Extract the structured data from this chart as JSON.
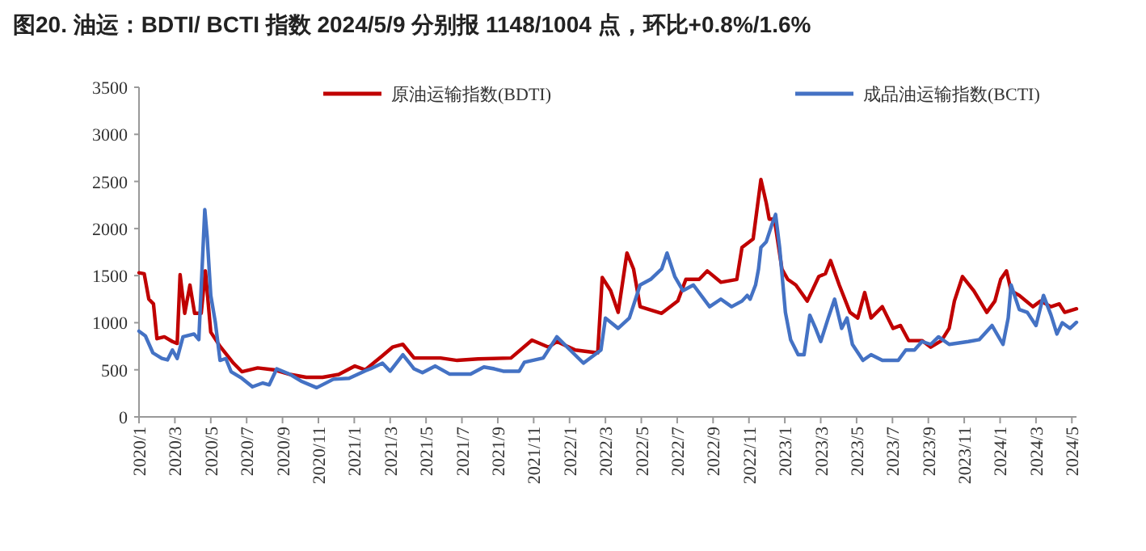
{
  "chart_data": {
    "type": "line",
    "title": "图20. 油运：BDTI/ BCTI 指数 2024/5/9 分别报 1148/1004 点，环比+0.8%/1.6%",
    "legend": "top",
    "ylim": [
      0,
      3500
    ],
    "yticks": [
      0,
      500,
      1000,
      1500,
      2000,
      2500,
      3000,
      3500
    ],
    "xlim": [
      "2020-01-01",
      "2024-05-09"
    ],
    "xticks": [
      {
        "value": "2020-01",
        "label": "2020/1"
      },
      {
        "value": "2020-03",
        "label": "2020/3"
      },
      {
        "value": "2020-05",
        "label": "2020/5"
      },
      {
        "value": "2020-07",
        "label": "2020/7"
      },
      {
        "value": "2020-09",
        "label": "2020/9"
      },
      {
        "value": "2020-11",
        "label": "2020/11"
      },
      {
        "value": "2021-01",
        "label": "2021/1"
      },
      {
        "value": "2021-03",
        "label": "2021/3"
      },
      {
        "value": "2021-05",
        "label": "2021/5"
      },
      {
        "value": "2021-07",
        "label": "2021/7"
      },
      {
        "value": "2021-09",
        "label": "2021/9"
      },
      {
        "value": "2021-11",
        "label": "2021/11"
      },
      {
        "value": "2022-01",
        "label": "2022/1"
      },
      {
        "value": "2022-03",
        "label": "2022/3"
      },
      {
        "value": "2022-05",
        "label": "2022/5"
      },
      {
        "value": "2022-07",
        "label": "2022/7"
      },
      {
        "value": "2022-09",
        "label": "2022/9"
      },
      {
        "value": "2022-11",
        "label": "2022/11"
      },
      {
        "value": "2023-01",
        "label": "2023/1"
      },
      {
        "value": "2023-03",
        "label": "2023/3"
      },
      {
        "value": "2023-05",
        "label": "2023/5"
      },
      {
        "value": "2023-07",
        "label": "2023/7"
      },
      {
        "value": "2023-09",
        "label": "2023/9"
      },
      {
        "value": "2023-11",
        "label": "2023/11"
      },
      {
        "value": "2024-01",
        "label": "2024/1"
      },
      {
        "value": "2024-03",
        "label": "2024/3"
      },
      {
        "value": "2024-05",
        "label": "2024/5"
      }
    ],
    "series": [
      {
        "name": "原油运输指数(BDTI)",
        "color": "#c00000",
        "x": [
          "2020-01-01",
          "2020-01-10",
          "2020-01-18",
          "2020-01-26",
          "2020-02-01",
          "2020-02-13",
          "2020-02-26",
          "2020-03-05",
          "2020-03-10",
          "2020-03-18",
          "2020-03-27",
          "2020-04-04",
          "2020-04-15",
          "2020-04-22",
          "2020-05-01",
          "2020-05-17",
          "2020-06-09",
          "2020-06-23",
          "2020-07-20",
          "2020-08-17",
          "2020-09-14",
          "2020-10-11",
          "2020-11-08",
          "2020-12-05",
          "2021-01-02",
          "2021-01-20",
          "2021-02-17",
          "2021-03-05",
          "2021-03-23",
          "2021-04-11",
          "2021-05-26",
          "2021-06-23",
          "2021-07-29",
          "2021-09-23",
          "2021-10-29",
          "2021-11-26",
          "2021-12-10",
          "2022-01-11",
          "2022-02-17",
          "2022-02-24",
          "2022-03-10",
          "2022-03-23",
          "2022-04-07",
          "2022-04-18",
          "2022-04-29",
          "2022-06-05",
          "2022-07-02",
          "2022-07-16",
          "2022-08-08",
          "2022-08-22",
          "2022-09-14",
          "2022-10-11",
          "2022-10-20",
          "2022-11-08",
          "2022-11-21",
          "2022-11-30",
          "2022-12-05",
          "2022-12-14",
          "2022-12-27",
          "2023-01-06",
          "2023-01-20",
          "2023-02-08",
          "2023-02-26",
          "2023-03-09",
          "2023-03-18",
          "2023-04-02",
          "2023-04-20",
          "2023-05-03",
          "2023-05-15",
          "2023-05-26",
          "2023-06-14",
          "2023-07-02",
          "2023-07-15",
          "2023-07-29",
          "2023-08-21",
          "2023-09-05",
          "2023-09-23",
          "2023-10-06",
          "2023-10-15",
          "2023-10-29",
          "2023-11-17",
          "2023-12-09",
          "2023-12-23",
          "2024-01-02",
          "2024-01-12",
          "2024-01-20",
          "2024-02-03",
          "2024-02-25",
          "2024-03-09",
          "2024-03-27",
          "2024-04-10",
          "2024-04-19",
          "2024-05-09"
        ],
        "values": [
          1530,
          1520,
          1250,
          1200,
          830,
          850,
          800,
          780,
          1510,
          1100,
          1400,
          1100,
          1100,
          1550,
          900,
          750,
          570,
          480,
          520,
          500,
          450,
          420,
          420,
          450,
          540,
          500,
          650,
          740,
          770,
          625,
          625,
          600,
          615,
          625,
          815,
          740,
          800,
          710,
          680,
          1480,
          1340,
          1110,
          1740,
          1570,
          1170,
          1100,
          1230,
          1460,
          1460,
          1550,
          1430,
          1460,
          1800,
          1890,
          2520,
          2270,
          2100,
          2100,
          1570,
          1460,
          1400,
          1230,
          1490,
          1520,
          1660,
          1400,
          1110,
          1050,
          1320,
          1050,
          1170,
          940,
          970,
          810,
          810,
          740,
          810,
          940,
          1230,
          1490,
          1340,
          1110,
          1230,
          1460,
          1550,
          1340,
          1290,
          1170,
          1230,
          1170,
          1200,
          1110,
          1148
        ]
      },
      {
        "name": "成品油运输指数(BCTI)",
        "color": "#4472c4",
        "x": [
          "2020-01-01",
          "2020-01-12",
          "2020-01-25",
          "2020-02-09",
          "2020-02-18",
          "2020-02-26",
          "2020-03-05",
          "2020-03-15",
          "2020-04-03",
          "2020-04-11",
          "2020-04-21",
          "2020-04-25",
          "2020-05-01",
          "2020-05-09",
          "2020-05-17",
          "2020-05-27",
          "2020-06-05",
          "2020-06-23",
          "2020-07-11",
          "2020-07-29",
          "2020-08-09",
          "2020-08-22",
          "2020-09-14",
          "2020-10-02",
          "2020-10-29",
          "2020-11-26",
          "2020-12-23",
          "2021-01-20",
          "2021-01-29",
          "2021-02-17",
          "2021-03-01",
          "2021-03-23",
          "2021-04-11",
          "2021-04-25",
          "2021-05-17",
          "2021-06-10",
          "2021-07-16",
          "2021-08-08",
          "2021-08-26",
          "2021-09-10",
          "2021-10-07",
          "2021-10-16",
          "2021-11-17",
          "2021-12-10",
          "2022-01-02",
          "2022-01-25",
          "2022-02-22",
          "2022-03-01",
          "2022-03-23",
          "2022-04-11",
          "2022-04-29",
          "2022-05-17",
          "2022-06-05",
          "2022-06-14",
          "2022-06-27",
          "2022-07-11",
          "2022-07-29",
          "2022-08-26",
          "2022-09-14",
          "2022-10-02",
          "2022-10-20",
          "2022-10-29",
          "2022-11-03",
          "2022-11-12",
          "2022-11-17",
          "2022-11-21",
          "2022-11-30",
          "2022-12-09",
          "2022-12-16",
          "2022-12-23",
          "2023-01-02",
          "2023-01-11",
          "2023-01-24",
          "2023-02-03",
          "2023-02-12",
          "2023-02-21",
          "2023-03-01",
          "2023-03-14",
          "2023-03-25",
          "2023-04-06",
          "2023-04-15",
          "2023-04-24",
          "2023-05-12",
          "2023-05-26",
          "2023-06-14",
          "2023-07-11",
          "2023-07-24",
          "2023-08-08",
          "2023-08-21",
          "2023-09-05",
          "2023-09-18",
          "2023-10-06",
          "2023-11-08",
          "2023-11-26",
          "2023-12-18",
          "2024-01-06",
          "2024-01-15",
          "2024-01-20",
          "2024-02-03",
          "2024-02-16",
          "2024-03-01",
          "2024-03-14",
          "2024-03-27",
          "2024-04-06",
          "2024-04-15",
          "2024-04-28",
          "2024-05-09"
        ],
        "values": [
          910,
          860,
          680,
          620,
          605,
          710,
          620,
          850,
          880,
          820,
          2200,
          1910,
          1290,
          1000,
          600,
          620,
          480,
          410,
          320,
          360,
          340,
          510,
          450,
          380,
          310,
          400,
          410,
          490,
          510,
          570,
          485,
          660,
          510,
          470,
          540,
          455,
          455,
          530,
          510,
          485,
          485,
          580,
          625,
          850,
          710,
          570,
          710,
          1050,
          940,
          1050,
          1400,
          1460,
          1570,
          1740,
          1490,
          1340,
          1400,
          1170,
          1250,
          1170,
          1230,
          1290,
          1250,
          1400,
          1570,
          1800,
          1860,
          2030,
          2150,
          1800,
          1110,
          820,
          660,
          660,
          1080,
          940,
          800,
          1050,
          1250,
          940,
          1050,
          770,
          600,
          660,
          600,
          600,
          710,
          710,
          800,
          770,
          850,
          770,
          800,
          820,
          970,
          770,
          1050,
          1400,
          1140,
          1110,
          970,
          1290,
          1080,
          880,
          1000,
          940,
          1004
        ]
      }
    ]
  }
}
